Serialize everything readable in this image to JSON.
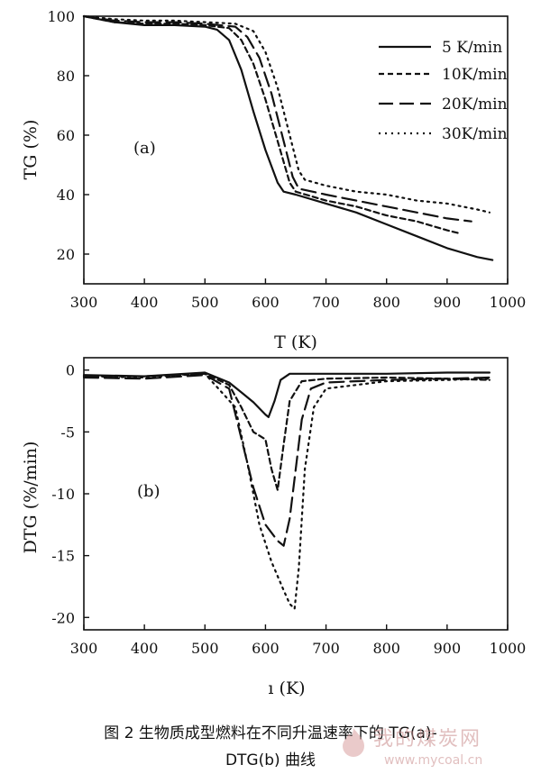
{
  "caption": {
    "line1": "图 2 生物质成型燃料在不同升温速率下的 TG(a)-",
    "line2": "DTG(b) 曲线"
  },
  "watermark": {
    "name": "我的煤炭网",
    "url": "www.mycoal.cn"
  },
  "chart_data": [
    {
      "type": "line",
      "panel_label": "(a)",
      "xlabel": "T (K)",
      "ylabel": "TG (%)",
      "xlim": [
        300,
        1000
      ],
      "ylim": [
        10,
        100
      ],
      "xticks": [
        300,
        400,
        500,
        600,
        700,
        800,
        900,
        1000
      ],
      "yticks": [
        20,
        40,
        60,
        80,
        100
      ],
      "legend_position": "top-right",
      "series": [
        {
          "name": "5  K/min",
          "dash": "solid",
          "x": [
            300,
            350,
            400,
            450,
            500,
            520,
            540,
            560,
            580,
            600,
            620,
            630,
            650,
            700,
            750,
            800,
            850,
            900,
            950,
            975
          ],
          "y": [
            100,
            98,
            97,
            97,
            96.5,
            95.5,
            92,
            82,
            68,
            55,
            44,
            41,
            40,
            37,
            34,
            30,
            26,
            22,
            19,
            18
          ]
        },
        {
          "name": "10K/min",
          "dash": "short",
          "x": [
            300,
            350,
            400,
            450,
            500,
            540,
            560,
            580,
            600,
            620,
            640,
            650,
            700,
            750,
            800,
            850,
            900,
            920
          ],
          "y": [
            100,
            98,
            97.5,
            97.5,
            97,
            96,
            92,
            84,
            72,
            58,
            44,
            41,
            38,
            36,
            33,
            31,
            28,
            27
          ]
        },
        {
          "name": "20K/min",
          "dash": "long",
          "x": [
            300,
            350,
            400,
            450,
            500,
            550,
            570,
            590,
            610,
            630,
            645,
            655,
            700,
            750,
            800,
            850,
            900,
            940
          ],
          "y": [
            100,
            98.5,
            98,
            98,
            97.5,
            96.5,
            93,
            86,
            74,
            58,
            46,
            42,
            40,
            38,
            36,
            34,
            32,
            31
          ]
        },
        {
          "name": "30K/min",
          "dash": "dot",
          "x": [
            300,
            350,
            400,
            450,
            500,
            550,
            580,
            600,
            620,
            640,
            655,
            665,
            700,
            750,
            800,
            850,
            900,
            950,
            970
          ],
          "y": [
            100,
            99,
            98.5,
            98.5,
            98,
            97.5,
            95,
            88,
            76,
            60,
            48,
            45,
            43,
            41,
            40,
            38,
            37,
            35,
            34
          ]
        }
      ]
    },
    {
      "type": "line",
      "panel_label": "(b)",
      "xlabel": "ı (K)",
      "ylabel": "DTG (%/min)",
      "xlim": [
        300,
        1000
      ],
      "ylim": [
        -21,
        1
      ],
      "xticks": [
        300,
        400,
        500,
        600,
        700,
        800,
        900,
        1000
      ],
      "yticks": [
        0,
        -5,
        -10,
        -15,
        -20
      ],
      "series": [
        {
          "dash": "solid",
          "x": [
            300,
            400,
            500,
            540,
            560,
            580,
            600,
            605,
            615,
            625,
            640,
            700,
            800,
            900,
            970
          ],
          "y": [
            -0.4,
            -0.5,
            -0.2,
            -1.0,
            -1.8,
            -2.6,
            -3.6,
            -3.8,
            -2.5,
            -0.8,
            -0.3,
            -0.3,
            -0.3,
            -0.2,
            -0.2
          ]
        },
        {
          "dash": "short",
          "x": [
            300,
            400,
            500,
            540,
            560,
            580,
            600,
            610,
            620,
            630,
            640,
            660,
            700,
            800,
            900,
            970
          ],
          "y": [
            -0.5,
            -0.5,
            -0.3,
            -1.2,
            -3.0,
            -5.0,
            -5.6,
            -8.0,
            -9.7,
            -6.0,
            -2.5,
            -0.9,
            -0.7,
            -0.6,
            -0.7,
            -0.8
          ]
        },
        {
          "dash": "long",
          "x": [
            300,
            400,
            500,
            540,
            560,
            580,
            600,
            620,
            630,
            640,
            650,
            660,
            675,
            700,
            800,
            900,
            970
          ],
          "y": [
            -0.6,
            -0.7,
            -0.4,
            -1.5,
            -5.5,
            -9.5,
            -12.5,
            -13.8,
            -14.2,
            -12.0,
            -8.0,
            -4.0,
            -1.5,
            -1.0,
            -0.8,
            -0.7,
            -0.6
          ]
        },
        {
          "dash": "dot",
          "x": [
            300,
            400,
            500,
            550,
            570,
            590,
            610,
            630,
            640,
            648,
            655,
            665,
            680,
            700,
            800,
            900,
            970
          ],
          "y": [
            -0.5,
            -0.6,
            -0.3,
            -3.0,
            -7.5,
            -12.5,
            -15.5,
            -17.8,
            -18.9,
            -19.3,
            -16.0,
            -8.0,
            -3.0,
            -1.5,
            -0.9,
            -0.8,
            -0.7
          ]
        }
      ]
    }
  ]
}
